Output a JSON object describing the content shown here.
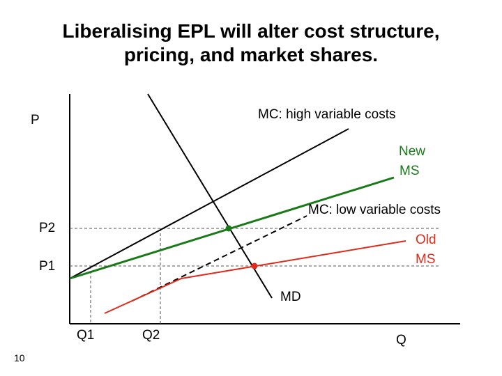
{
  "slide": {
    "title_line1": "Liberalising EPL will alter cost structure,",
    "title_line2": "pricing, and market shares.",
    "page_number": "10"
  },
  "diagram": {
    "axis_labels": {
      "y": "P",
      "x": "Q"
    },
    "price_labels": {
      "p2": "P2",
      "p1": "P1"
    },
    "quantity_labels": {
      "q1": "Q1",
      "q2": "Q2"
    },
    "curve_labels": {
      "mc_high": "MC: high variable costs",
      "mc_low": "MC: low variable costs",
      "md": "MD",
      "new_ms_line1": "New",
      "new_ms_line2": "MS",
      "old_ms_line1": "Old",
      "old_ms_line2": "MS"
    },
    "colors": {
      "axes": "#000000",
      "mc_high": "#000000",
      "mc_low": "#000000",
      "md": "#000000",
      "new_ms": "#1a7a1a",
      "old_ms": "#e02a1a",
      "guides": "#555555"
    }
  }
}
